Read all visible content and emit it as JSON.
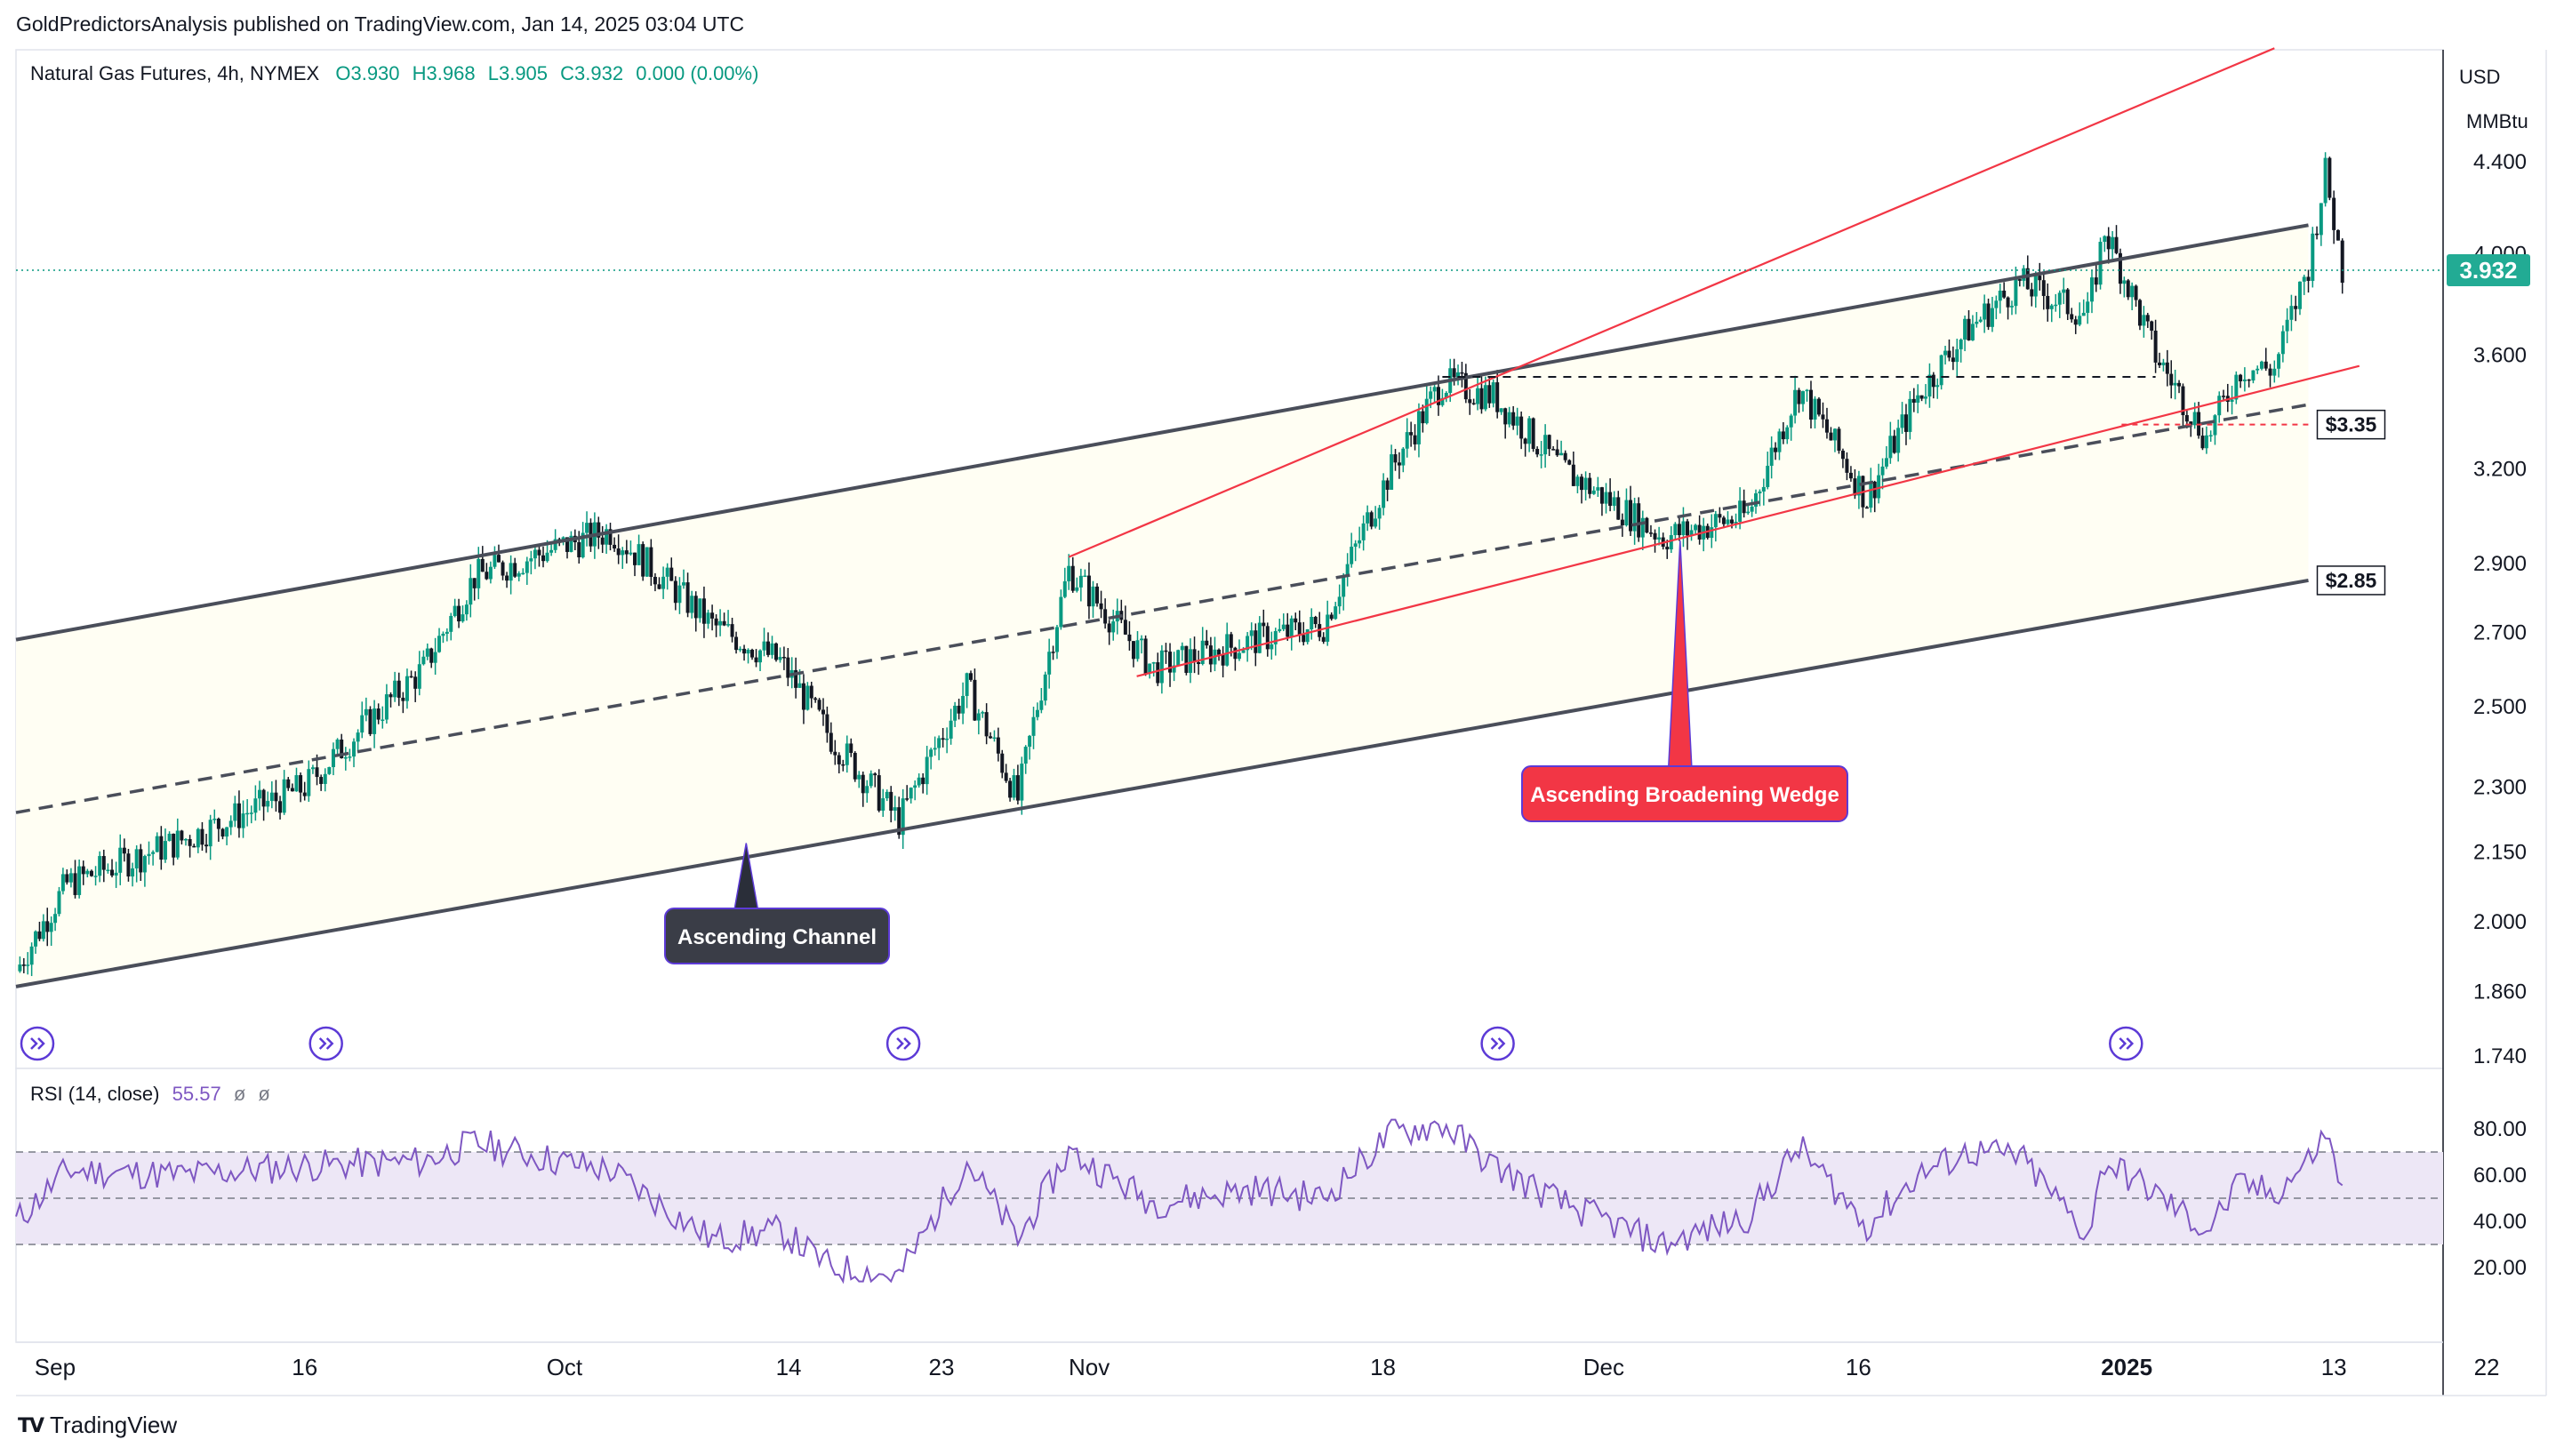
{
  "header": {
    "publisher": "GoldPredictorsAnalysis published on TradingView.com, Jan 14, 2025 03:04 UTC"
  },
  "legend": {
    "symbol": "Natural Gas Futures, 4h, NYMEX",
    "open": "O3.930",
    "high": "H3.968",
    "low": "L3.905",
    "close": "C3.932",
    "change": "0.000 (0.00%)"
  },
  "rsi_legend": {
    "name": "RSI (14, close)",
    "value": "55.57",
    "sym1": "ø",
    "sym2": "ø"
  },
  "footer": {
    "brand": "TradingView"
  },
  "colors": {
    "up": "#089981",
    "down": "#131722",
    "rsi_line": "#7e57c2",
    "rsi_band": "#ede7f6",
    "channel": "#4a4e5a",
    "wedge": "#f23645",
    "price_badge": "#22ab94"
  },
  "chart_data": [
    {
      "type": "candlestick",
      "title": "Natural Gas Futures, 4h, NYMEX",
      "currency_label": [
        "USD",
        "MMBtu"
      ],
      "y_scale": "log",
      "y_ticks": [
        4.4,
        4.0,
        3.6,
        3.2,
        2.9,
        2.7,
        2.5,
        2.3,
        2.15,
        2.0,
        1.86,
        1.74
      ],
      "y_tick_labels": [
        "4.400",
        "4.000",
        "3.600",
        "3.200",
        "2.900",
        "2.700",
        "2.500",
        "2.300",
        "2.150",
        "2.000",
        "1.860",
        "1.740"
      ],
      "x_ticks": [
        "Sep",
        "16",
        "Oct",
        "14",
        "23",
        "Nov",
        "18",
        "Dec",
        "16",
        "2025",
        "13",
        "22"
      ],
      "last_price": 3.932,
      "last_price_label": "3.932",
      "key_path": [
        {
          "d": "Aug 30",
          "p": 1.9
        },
        {
          "d": "Sep 2",
          "p": 2.08
        },
        {
          "d": "Sep 9",
          "p": 2.18
        },
        {
          "d": "Sep 16",
          "p": 2.3
        },
        {
          "d": "Sep 23",
          "p": 2.6
        },
        {
          "d": "Sep 26",
          "p": 2.86
        },
        {
          "d": "Oct 1",
          "p": 2.95
        },
        {
          "d": "Oct 4",
          "p": 3.0
        },
        {
          "d": "Oct 10",
          "p": 2.72
        },
        {
          "d": "Oct 14",
          "p": 2.62
        },
        {
          "d": "Oct 17",
          "p": 2.42
        },
        {
          "d": "Oct 21",
          "p": 2.22
        },
        {
          "d": "Oct 25",
          "p": 2.55
        },
        {
          "d": "Oct 28",
          "p": 2.27
        },
        {
          "d": "Oct 31",
          "p": 2.88
        },
        {
          "d": "Nov 5",
          "p": 2.6
        },
        {
          "d": "Nov 11",
          "p": 2.68
        },
        {
          "d": "Nov 15",
          "p": 2.72
        },
        {
          "d": "Nov 19",
          "p": 3.2
        },
        {
          "d": "Nov 22",
          "p": 3.5
        },
        {
          "d": "Nov 25",
          "p": 3.45
        },
        {
          "d": "Nov 29",
          "p": 3.2
        },
        {
          "d": "Dec 5",
          "p": 2.98
        },
        {
          "d": "Dec 10",
          "p": 3.05
        },
        {
          "d": "Dec 13",
          "p": 3.48
        },
        {
          "d": "Dec 17",
          "p": 3.1
        },
        {
          "d": "Dec 20",
          "p": 3.45
        },
        {
          "d": "Dec 23",
          "p": 3.7
        },
        {
          "d": "Dec 26",
          "p": 3.88
        },
        {
          "d": "Dec 30",
          "p": 3.75
        },
        {
          "d": "Dec 31",
          "p": 4.1
        },
        {
          "d": "Jan 3",
          "p": 3.6
        },
        {
          "d": "Jan 6",
          "p": 3.3
        },
        {
          "d": "Jan 8",
          "p": 3.55
        },
        {
          "d": "Jan 10",
          "p": 3.55
        },
        {
          "d": "Jan 12",
          "p": 3.95
        },
        {
          "d": "Jan 13",
          "p": 4.35
        },
        {
          "d": "Jan 14",
          "p": 3.932
        }
      ],
      "annotations": [
        {
          "type": "label",
          "text": "Ascending Channel"
        },
        {
          "type": "label",
          "text": "Ascending Broadening Wedge"
        },
        {
          "type": "price_tag",
          "text": "$3.35",
          "value": 3.35
        },
        {
          "type": "price_tag",
          "text": "$2.85",
          "value": 2.85
        }
      ],
      "lines": [
        {
          "name": "channel_upper",
          "from": {
            "d": "Aug 30",
            "p": 2.68
          },
          "to": {
            "d": "Jan 12",
            "p": 4.12
          }
        },
        {
          "name": "channel_mid",
          "from": {
            "d": "Aug 30",
            "p": 2.24
          },
          "to": {
            "d": "Jan 12",
            "p": 3.42
          }
        },
        {
          "name": "channel_lower",
          "from": {
            "d": "Aug 30",
            "p": 1.87
          },
          "to": {
            "d": "Jan 12",
            "p": 2.85
          }
        },
        {
          "name": "wedge_upper",
          "from": {
            "d": "Oct 31",
            "p": 2.92
          },
          "to": {
            "d": "Jan 10",
            "p": 4.95
          }
        },
        {
          "name": "wedge_lower",
          "from": {
            "d": "Nov 4",
            "p": 2.58
          },
          "to": {
            "d": "Jan 15",
            "p": 3.56
          }
        },
        {
          "name": "resistance",
          "from": {
            "d": "Nov 22",
            "p": 3.52
          },
          "to": {
            "d": "Jan 3",
            "p": 3.52
          }
        },
        {
          "name": "support_3_35",
          "from": {
            "d": "Jan 1",
            "p": 3.35
          },
          "to": {
            "d": "Jan 12",
            "p": 3.35
          }
        }
      ]
    },
    {
      "type": "line",
      "title": "RSI (14, close)",
      "y_ticks": [
        80,
        60,
        40,
        20
      ],
      "y_tick_labels": [
        "80.00",
        "60.00",
        "40.00",
        "20.00"
      ],
      "bands": {
        "upper": 70,
        "middle": 50,
        "lower": 30
      },
      "last_value": 55.57,
      "key_path": [
        {
          "d": "Aug 30",
          "v": 40
        },
        {
          "d": "Sep 2",
          "v": 62
        },
        {
          "d": "Sep 9",
          "v": 60
        },
        {
          "d": "Sep 16",
          "v": 64
        },
        {
          "d": "Sep 23",
          "v": 66
        },
        {
          "d": "Sep 26",
          "v": 74
        },
        {
          "d": "Oct 1",
          "v": 66
        },
        {
          "d": "Oct 4",
          "v": 62
        },
        {
          "d": "Oct 10",
          "v": 32
        },
        {
          "d": "Oct 14",
          "v": 36
        },
        {
          "d": "Oct 17",
          "v": 20
        },
        {
          "d": "Oct 21",
          "v": 16
        },
        {
          "d": "Oct 25",
          "v": 66
        },
        {
          "d": "Oct 28",
          "v": 32
        },
        {
          "d": "Oct 31",
          "v": 70
        },
        {
          "d": "Nov 5",
          "v": 48
        },
        {
          "d": "Nov 11",
          "v": 54
        },
        {
          "d": "Nov 15",
          "v": 50
        },
        {
          "d": "Nov 19",
          "v": 78
        },
        {
          "d": "Nov 22",
          "v": 82
        },
        {
          "d": "Nov 25",
          "v": 64
        },
        {
          "d": "Nov 29",
          "v": 48
        },
        {
          "d": "Dec 5",
          "v": 30
        },
        {
          "d": "Dec 10",
          "v": 42
        },
        {
          "d": "Dec 13",
          "v": 72
        },
        {
          "d": "Dec 17",
          "v": 38
        },
        {
          "d": "Dec 20",
          "v": 60
        },
        {
          "d": "Dec 23",
          "v": 70
        },
        {
          "d": "Dec 26",
          "v": 68
        },
        {
          "d": "Dec 30",
          "v": 34
        },
        {
          "d": "Dec 31",
          "v": 66
        },
        {
          "d": "Jan 3",
          "v": 52
        },
        {
          "d": "Jan 6",
          "v": 36
        },
        {
          "d": "Jan 8",
          "v": 56
        },
        {
          "d": "Jan 10",
          "v": 52
        },
        {
          "d": "Jan 12",
          "v": 66
        },
        {
          "d": "Jan 13",
          "v": 78
        },
        {
          "d": "Jan 14",
          "v": 55.57
        }
      ]
    }
  ]
}
